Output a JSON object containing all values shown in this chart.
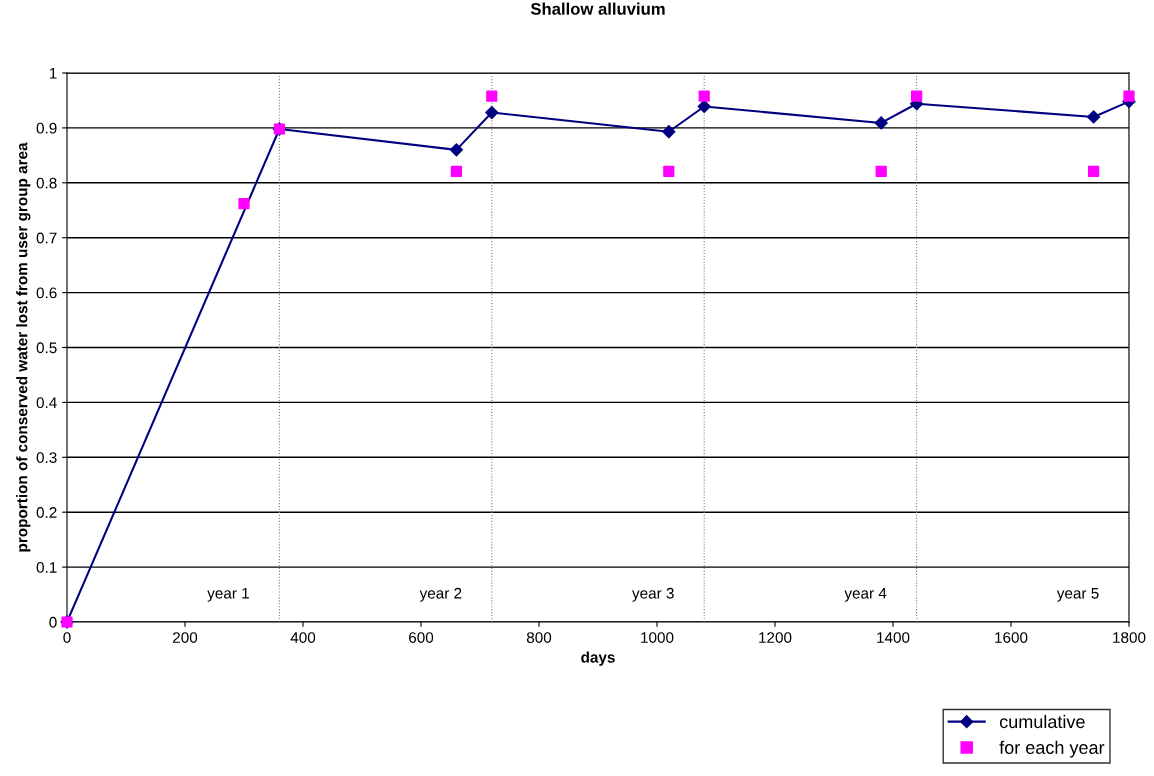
{
  "chart_data": {
    "type": "line",
    "title": "Shallow alluvium",
    "xlabel": "days",
    "ylabel": "proportion of conserved water lost from user group area",
    "xlim": [
      0,
      1800
    ],
    "xticks": [
      0,
      200,
      400,
      600,
      800,
      1000,
      1200,
      1400,
      1600,
      1800
    ],
    "ylim": [
      0,
      1
    ],
    "yticks": [
      0,
      0.1,
      0.2,
      0.3,
      0.4,
      0.5,
      0.6,
      0.7,
      0.8,
      0.9,
      1
    ],
    "grid": "y",
    "legend": "bottom right",
    "series": [
      {
        "name": "cumulative",
        "marker": "diamond",
        "color": "#000080",
        "x": [
          0,
          360,
          660,
          720,
          1020,
          1080,
          1380,
          1440,
          1740,
          1800
        ],
        "values": [
          0,
          0.898,
          0.86,
          0.928,
          0.893,
          0.939,
          0.909,
          0.944,
          0.92,
          0.948
        ]
      },
      {
        "name": "for each year",
        "type": "scatter",
        "marker": "square",
        "color": "#ff00ff",
        "x": [
          0,
          300,
          360,
          660,
          720,
          1020,
          1080,
          1380,
          1440,
          1740,
          1800
        ],
        "values": [
          0,
          0.762,
          0.898,
          0.821,
          0.958,
          0.821,
          0.958,
          0.821,
          0.958,
          0.821,
          0.958
        ]
      }
    ],
    "ref_lines": [
      {
        "axis": "x",
        "value": 360,
        "label": "year 1",
        "line_style": "dotted",
        "color": "#808080"
      },
      {
        "axis": "x",
        "value": 720,
        "label": "year 2",
        "line_style": "dotted",
        "color": "#808080"
      },
      {
        "axis": "x",
        "value": 1080,
        "label": "year 3",
        "line_style": "dotted",
        "color": "#808080"
      },
      {
        "axis": "x",
        "value": 1440,
        "label": "year 4",
        "line_style": "dotted",
        "color": "#808080"
      },
      {
        "axis": "x",
        "value": 1800,
        "label": "year 5",
        "line_style": "dotted",
        "color": "#808080"
      }
    ]
  }
}
